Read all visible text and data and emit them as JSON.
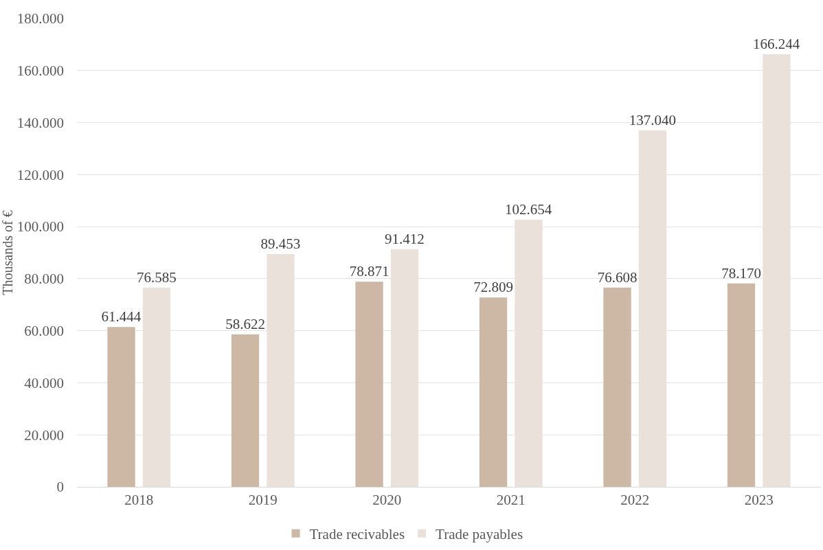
{
  "chart_data": {
    "type": "bar",
    "ylabel": "Thousands of €",
    "categories": [
      "2018",
      "2019",
      "2020",
      "2021",
      "2022",
      "2023"
    ],
    "series": [
      {
        "name": "Trade recivables",
        "color": "#cdb8a5",
        "values": [
          61444,
          58622,
          78871,
          72809,
          76608,
          78170
        ],
        "value_labels": [
          "61.444",
          "58.622",
          "78.871",
          "72.809",
          "76.608",
          "78.170"
        ]
      },
      {
        "name": "Trade payables",
        "color": "#ebe1db",
        "values": [
          76585,
          89453,
          91412,
          102654,
          137040,
          166244
        ],
        "value_labels": [
          "76.585",
          "89.453",
          "91.412",
          "102.654",
          "137.040",
          "166.244"
        ]
      }
    ],
    "ylim": [
      0,
      180000
    ],
    "yticks": [
      0,
      {
        "value": 20000,
        "label": "20.000"
      },
      {
        "value": 40000,
        "label": "40.000"
      },
      {
        "value": 60000,
        "label": "60.000"
      },
      {
        "value": 80000,
        "label": "80.000"
      },
      {
        "value": 100000,
        "label": "100.000"
      },
      {
        "value": 120000,
        "label": "120.000"
      },
      {
        "value": 140000,
        "label": "140.000"
      },
      {
        "value": 160000,
        "label": "160.000"
      },
      {
        "value": 180000,
        "label": "180.000"
      }
    ],
    "grid": "y",
    "legend": "bottom"
  }
}
